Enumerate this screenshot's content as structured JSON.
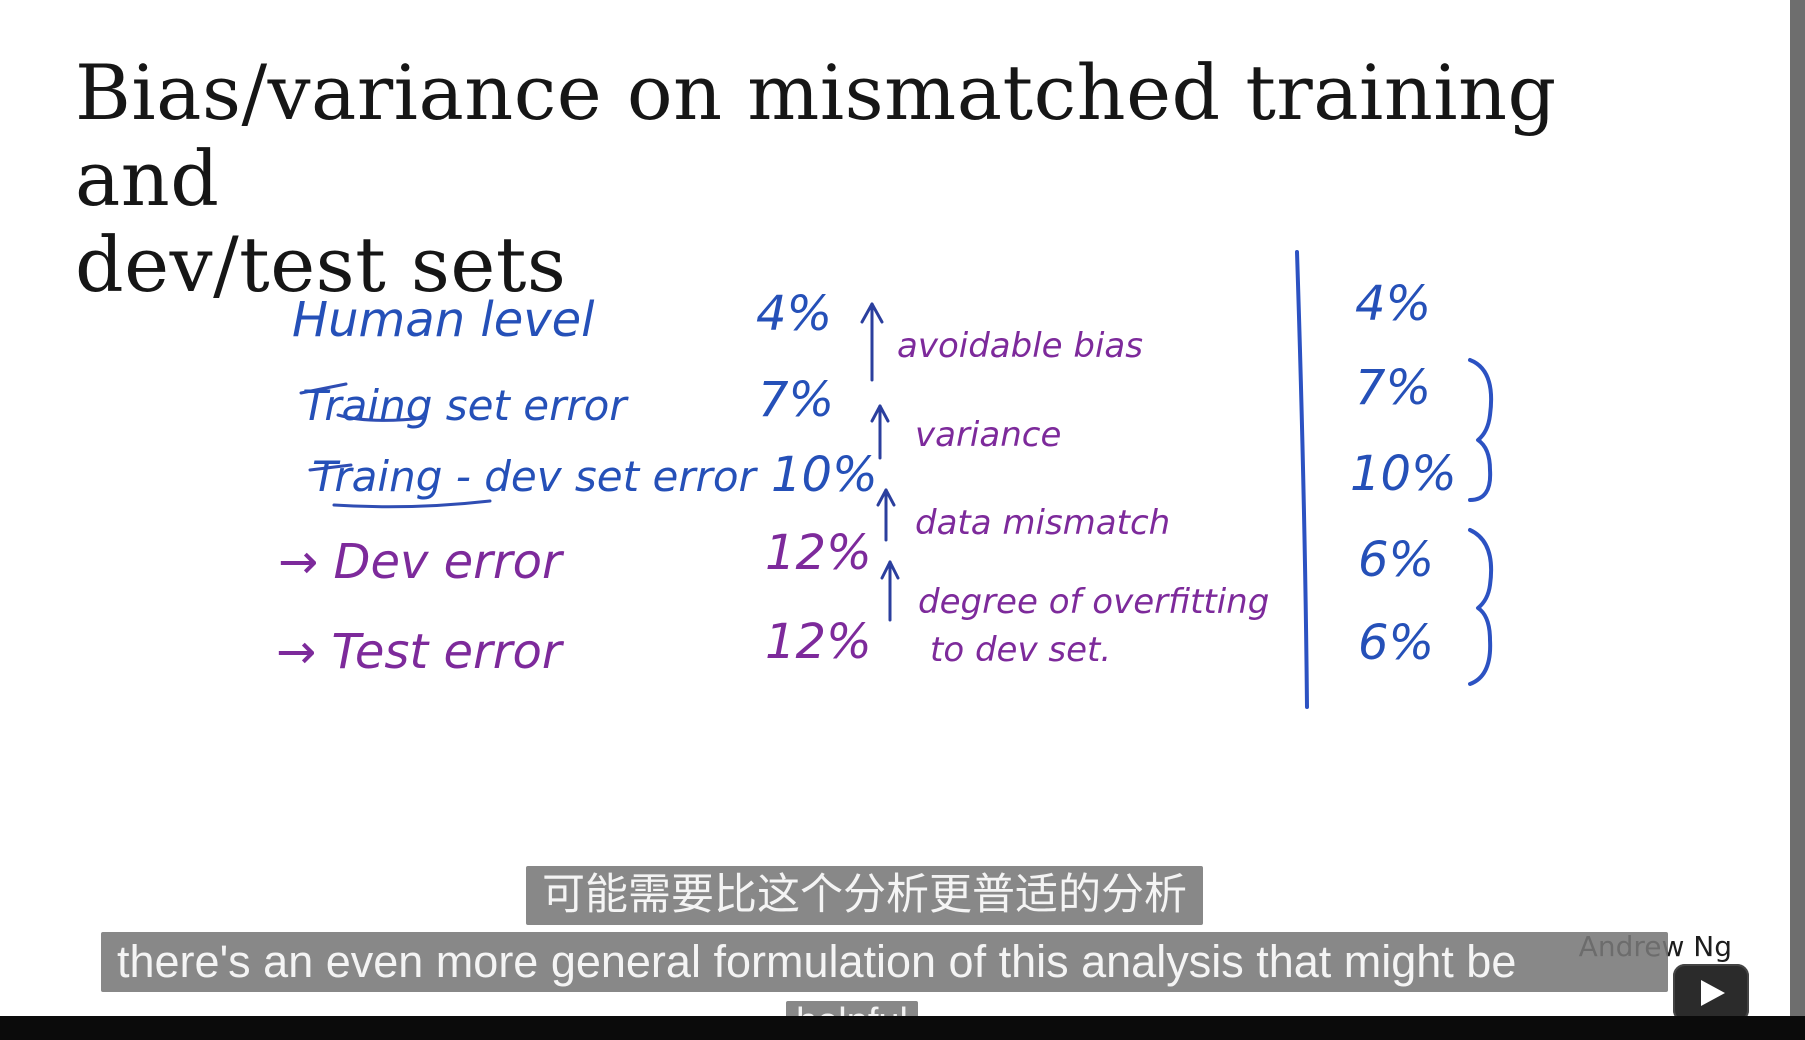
{
  "slide": {
    "title_line1": "Bias/variance on mismatched training and",
    "title_line2": "dev/test sets"
  },
  "handwriting": {
    "left_labels": [
      "Human level",
      "Traing set error",
      "Traing - dev set error",
      "→ Dev error",
      "→ Test error"
    ],
    "middle_values": [
      "4%",
      "7%",
      "10%",
      "12%",
      "12%"
    ],
    "notes": [
      "avoidable bias",
      "variance",
      "data mismatch",
      "degree of overfitting",
      "to dev set."
    ],
    "right_values": [
      "4%",
      "7%",
      "10%",
      "6%",
      "6%"
    ]
  },
  "subtitles": {
    "cn": "可能需要比这个分析更普适的分析",
    "en_line1": "there's an even more general formulation of this analysis that might be",
    "en_line2": "helpful"
  },
  "watermark": "Andrew Ng",
  "icons": {
    "play": "play-icon"
  }
}
